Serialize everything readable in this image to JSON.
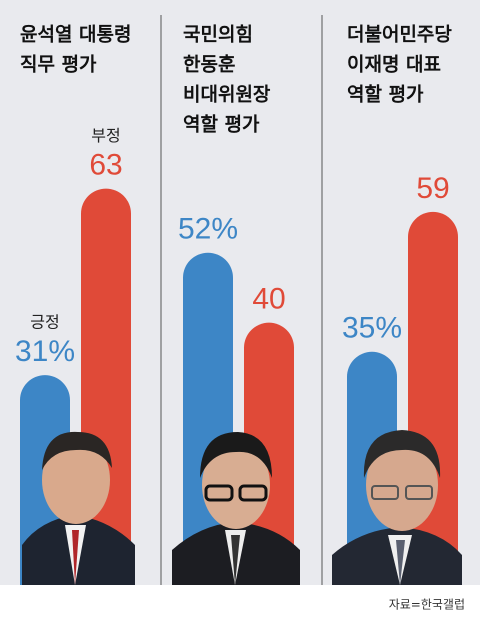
{
  "chart_data": [
    {
      "type": "bar",
      "title": [
        "윤석열 대통령",
        "직무 평가"
      ],
      "categories": [
        "긍정",
        "부정"
      ],
      "values": [
        31,
        63
      ],
      "value_labels": [
        "31%",
        "63"
      ],
      "colors": [
        "#3d86c6",
        "#e04a38"
      ],
      "ylim": [
        -5,
        95
      ]
    },
    {
      "type": "bar",
      "title": [
        "국민의힘",
        "한동훈",
        "비대위원장",
        "역할 평가"
      ],
      "categories": [
        null,
        null
      ],
      "values": [
        52,
        40
      ],
      "value_labels": [
        "52%",
        "40"
      ],
      "colors": [
        "#3d86c6",
        "#e04a38"
      ],
      "ylim": [
        -5,
        95
      ]
    },
    {
      "type": "bar",
      "title": [
        "더불어민주당",
        "이재명 대표",
        "역할 평가"
      ],
      "categories": [
        null,
        null
      ],
      "values": [
        35,
        59
      ],
      "value_labels": [
        "35%",
        "59"
      ],
      "colors": [
        "#3d86c6",
        "#e04a38"
      ],
      "ylim": [
        -5,
        95
      ]
    }
  ],
  "source": "자료=한국갤럽"
}
